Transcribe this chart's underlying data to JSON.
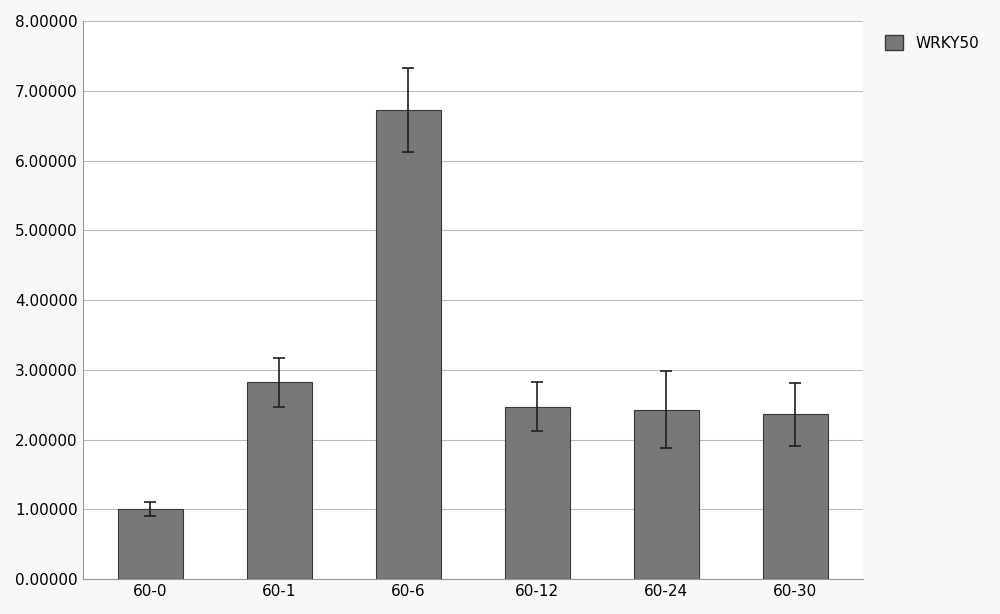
{
  "categories": [
    "60-0",
    "60-1",
    "60-6",
    "60-12",
    "60-24",
    "60-30"
  ],
  "values": [
    1.0,
    2.82,
    6.72,
    2.47,
    2.43,
    2.36
  ],
  "errors": [
    0.1,
    0.35,
    0.6,
    0.35,
    0.55,
    0.45
  ],
  "bar_color": "#787878",
  "bar_edge_color": "#383838",
  "legend_label": "WRKY50",
  "legend_box_color": "#787878",
  "ylim": [
    0,
    8.0
  ],
  "yticks": [
    0.0,
    1.0,
    2.0,
    3.0,
    4.0,
    5.0,
    6.0,
    7.0,
    8.0
  ],
  "ytick_labels": [
    "0.00000",
    "1.00000",
    "2.00000",
    "3.00000",
    "4.00000",
    "5.00000",
    "6.00000",
    "7.00000",
    "8.00000"
  ],
  "plot_bg_color": "#ffffff",
  "fig_bg_color": "#f8f8f8",
  "grid_color": "#bbbbbb",
  "bar_width": 0.5,
  "title": "",
  "xlabel": "",
  "ylabel": ""
}
